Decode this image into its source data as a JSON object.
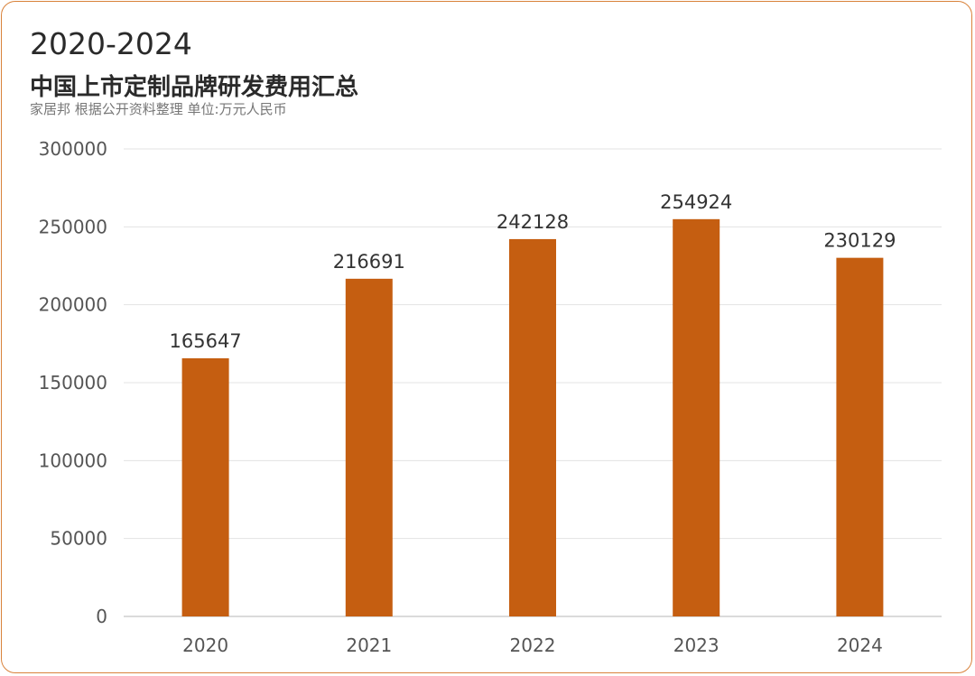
{
  "header": {
    "title": "2020-2024",
    "subtitle": "中国上市定制品牌研发费用汇总",
    "source": "家居邦  根据公开资料整理  单位:万元人民币"
  },
  "colors": {
    "bar": "#c55e11",
    "border": "#d9823a",
    "grid": "#e3e3e3",
    "axis": "#cfcfcf"
  },
  "chart_data": {
    "type": "bar",
    "categories": [
      "2020",
      "2021",
      "2022",
      "2023",
      "2024"
    ],
    "values": [
      165647,
      216691,
      242128,
      254924,
      230129
    ],
    "value_labels": [
      "165647",
      "216691",
      "242128",
      "254924",
      "230129"
    ],
    "ylim": [
      0,
      300000
    ],
    "yticks": [
      0,
      50000,
      100000,
      150000,
      200000,
      250000,
      300000
    ],
    "ytick_labels": [
      "0",
      "50000",
      "100000",
      "150000",
      "200000",
      "250000",
      "300000"
    ],
    "grid": true,
    "legend": "none"
  }
}
